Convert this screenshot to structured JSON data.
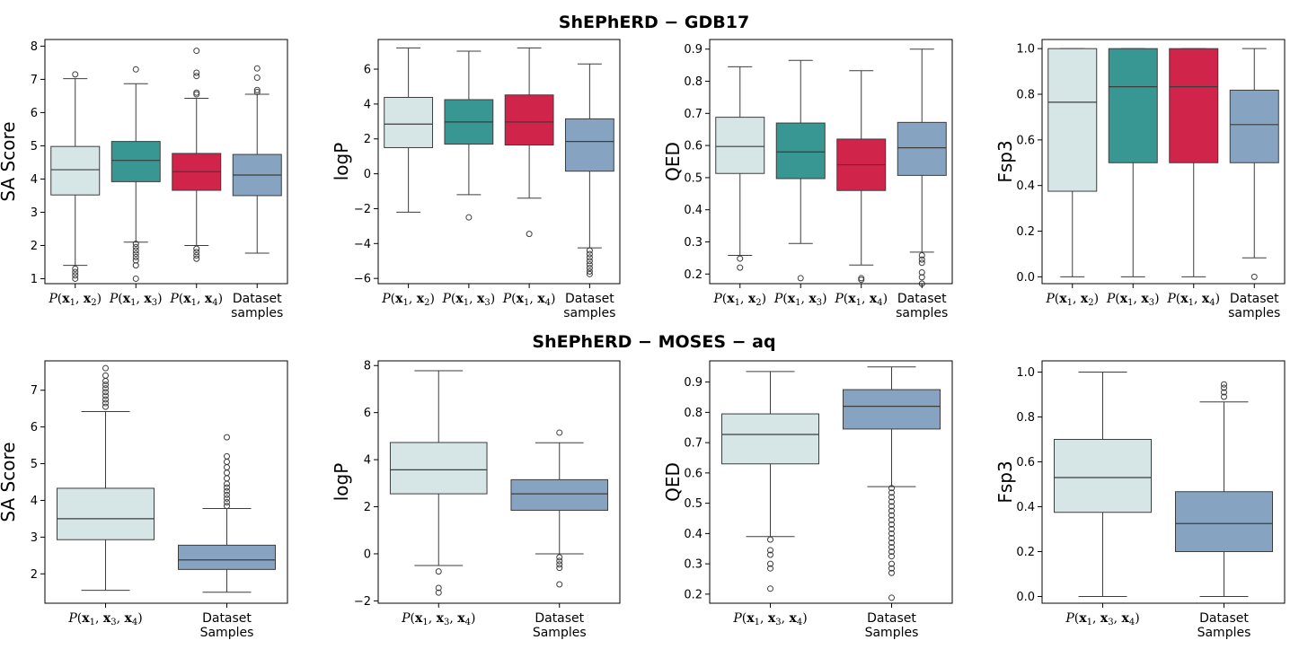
{
  "section_titles": [
    "ShEPhERD − GDB17",
    "ShEPhERD − MOSES − aq"
  ],
  "series_colors": {
    "P(x1,x2)": "#d6e6e6",
    "P(x1,x3)": "#389693",
    "P(x1,x4)": "#d1244a",
    "P(x1,x3,x4)": "#d6e6e6",
    "Dataset": "#86a4c2"
  },
  "chart_data": [
    {
      "type": "box",
      "ylabel": "SA Score",
      "ylim": [
        0.85,
        8.2
      ],
      "yticks": [
        1,
        2,
        3,
        4,
        5,
        6,
        7,
        8
      ],
      "ytick_labels": [
        "1",
        "2",
        "3",
        "4",
        "5",
        "6",
        "7",
        "8"
      ],
      "categories": [
        "P(x1,x2)",
        "P(x1,x3)",
        "P(x1,x4)",
        "Dataset samples"
      ],
      "boxes": [
        {
          "label": "P(x1,x2)",
          "color": "#d6e6e6",
          "whislo": 1.4,
          "q1": 3.52,
          "med": 4.28,
          "q3": 4.98,
          "whishi": 7.02,
          "fliers": [
            1.3,
            1.2,
            1.1,
            1.0,
            7.15
          ]
        },
        {
          "label": "P(x1,x3)",
          "color": "#389693",
          "whislo": 2.1,
          "q1": 3.92,
          "med": 4.56,
          "q3": 5.13,
          "whishi": 6.87,
          "fliers": [
            2.05,
            1.95,
            1.85,
            1.75,
            1.65,
            1.55,
            1.4,
            1.0,
            7.3
          ]
        },
        {
          "label": "P(x1,x4)",
          "color": "#d1244a",
          "whislo": 2.0,
          "q1": 3.66,
          "med": 4.22,
          "q3": 4.77,
          "whishi": 6.43,
          "fliers": [
            1.9,
            1.8,
            1.7,
            1.6,
            6.55,
            6.6,
            7.1,
            7.2,
            7.86
          ]
        },
        {
          "label": "Dataset samples",
          "color": "#86a4c2",
          "whislo": 1.77,
          "q1": 3.5,
          "med": 4.12,
          "q3": 4.74,
          "whishi": 6.55,
          "fliers": [
            6.62,
            6.68,
            7.05,
            7.33
          ]
        }
      ]
    },
    {
      "type": "box",
      "ylabel": "logP",
      "ylim": [
        -6.3,
        7.7
      ],
      "yticks": [
        -6,
        -4,
        -2,
        0,
        2,
        4,
        6
      ],
      "ytick_labels": [
        "−6",
        "−4",
        "−2",
        "0",
        "2",
        "4",
        "6"
      ],
      "categories": [
        "P(x1,x2)",
        "P(x1,x3)",
        "P(x1,x4)",
        "Dataset samples"
      ],
      "boxes": [
        {
          "label": "P(x1,x2)",
          "color": "#d6e6e6",
          "whislo": -2.2,
          "q1": 1.5,
          "med": 2.85,
          "q3": 4.38,
          "whishi": 7.22,
          "fliers": []
        },
        {
          "label": "P(x1,x3)",
          "color": "#389693",
          "whislo": -1.2,
          "q1": 1.7,
          "med": 2.97,
          "q3": 4.25,
          "whishi": 7.03,
          "fliers": [
            -2.5
          ]
        },
        {
          "label": "P(x1,x4)",
          "color": "#d1244a",
          "whislo": -1.4,
          "q1": 1.65,
          "med": 2.97,
          "q3": 4.52,
          "whishi": 7.22,
          "fliers": [
            -3.45
          ]
        },
        {
          "label": "Dataset samples",
          "color": "#86a4c2",
          "whislo": -4.25,
          "q1": 0.15,
          "med": 1.85,
          "q3": 3.15,
          "whishi": 6.3,
          "fliers": [
            -4.4,
            -4.6,
            -4.8,
            -5.0,
            -5.2,
            -5.4,
            -5.6,
            -5.75
          ]
        }
      ]
    },
    {
      "type": "box",
      "ylabel": "QED",
      "ylim": [
        0.17,
        0.93
      ],
      "yticks": [
        0.2,
        0.3,
        0.4,
        0.5,
        0.6,
        0.7,
        0.8,
        0.9
      ],
      "ytick_labels": [
        "0.2",
        "0.3",
        "0.4",
        "0.5",
        "0.6",
        "0.7",
        "0.8",
        "0.9"
      ],
      "categories": [
        "P(x1,x2)",
        "P(x1,x3)",
        "P(x1,x4)",
        "Dataset samples"
      ],
      "boxes": [
        {
          "label": "P(x1,x2)",
          "color": "#d6e6e6",
          "whislo": 0.258,
          "q1": 0.513,
          "med": 0.597,
          "q3": 0.688,
          "whishi": 0.845,
          "fliers": [
            0.248,
            0.22
          ]
        },
        {
          "label": "P(x1,x3)",
          "color": "#389693",
          "whislo": 0.295,
          "q1": 0.497,
          "med": 0.58,
          "q3": 0.67,
          "whishi": 0.865,
          "fliers": [
            0.187
          ]
        },
        {
          "label": "P(x1,x4)",
          "color": "#d1244a",
          "whislo": 0.228,
          "q1": 0.46,
          "med": 0.54,
          "q3": 0.62,
          "whishi": 0.833,
          "fliers": [
            0.187,
            0.182
          ]
        },
        {
          "label": "Dataset samples",
          "color": "#86a4c2",
          "whislo": 0.268,
          "q1": 0.507,
          "med": 0.593,
          "q3": 0.672,
          "whishi": 0.9,
          "fliers": [
            0.258,
            0.245,
            0.235,
            0.205,
            0.19,
            0.17
          ]
        }
      ]
    },
    {
      "type": "box",
      "ylabel": "Fsp3",
      "ylim": [
        -0.03,
        1.04
      ],
      "yticks": [
        0.0,
        0.2,
        0.4,
        0.6,
        0.8,
        1.0
      ],
      "ytick_labels": [
        "0.0",
        "0.2",
        "0.4",
        "0.6",
        "0.8",
        "1.0"
      ],
      "categories": [
        "P(x1,x2)",
        "P(x1,x3)",
        "P(x1,x4)",
        "Dataset samples"
      ],
      "boxes": [
        {
          "label": "P(x1,x2)",
          "color": "#d6e6e6",
          "whislo": 0.0,
          "q1": 0.375,
          "med": 0.765,
          "q3": 1.0,
          "whishi": 1.0,
          "fliers": []
        },
        {
          "label": "P(x1,x3)",
          "color": "#389693",
          "whislo": 0.0,
          "q1": 0.5,
          "med": 0.833,
          "q3": 1.0,
          "whishi": 1.0,
          "fliers": []
        },
        {
          "label": "P(x1,x4)",
          "color": "#d1244a",
          "whislo": 0.0,
          "q1": 0.5,
          "med": 0.833,
          "q3": 1.0,
          "whishi": 1.0,
          "fliers": []
        },
        {
          "label": "Dataset samples",
          "color": "#86a4c2",
          "whislo": 0.083,
          "q1": 0.5,
          "med": 0.667,
          "q3": 0.818,
          "whishi": 1.0,
          "fliers": [
            0.0
          ]
        }
      ]
    },
    {
      "type": "box",
      "ylabel": "SA Score",
      "ylim": [
        1.2,
        7.8
      ],
      "yticks": [
        2,
        3,
        4,
        5,
        6,
        7
      ],
      "ytick_labels": [
        "2",
        "3",
        "4",
        "5",
        "6",
        "7"
      ],
      "categories": [
        "P(x1,x3,x4)",
        "Dataset Samples"
      ],
      "boxes": [
        {
          "label": "P(x1,x3,x4)",
          "color": "#d6e6e6",
          "whislo": 1.55,
          "q1": 2.93,
          "med": 3.5,
          "q3": 4.33,
          "whishi": 6.42,
          "fliers": [
            6.55,
            6.65,
            6.75,
            6.85,
            6.95,
            7.05,
            7.15,
            7.25,
            7.4,
            7.6
          ]
        },
        {
          "label": "Dataset Samples",
          "color": "#86a4c2",
          "whislo": 1.5,
          "q1": 2.12,
          "med": 2.38,
          "q3": 2.78,
          "whishi": 3.78,
          "fliers": [
            3.85,
            3.95,
            4.05,
            4.15,
            4.25,
            4.35,
            4.45,
            4.6,
            4.75,
            4.9,
            5.05,
            5.2,
            5.72
          ]
        }
      ]
    },
    {
      "type": "box",
      "ylabel": "logP",
      "ylim": [
        -2.1,
        8.2
      ],
      "yticks": [
        -2,
        0,
        2,
        4,
        6,
        8
      ],
      "ytick_labels": [
        "−2",
        "0",
        "2",
        "4",
        "6",
        "8"
      ],
      "categories": [
        "P(x1,x3,x4)",
        "Dataset Samples"
      ],
      "boxes": [
        {
          "label": "P(x1,x3,x4)",
          "color": "#d6e6e6",
          "whislo": -0.5,
          "q1": 2.55,
          "med": 3.57,
          "q3": 4.73,
          "whishi": 7.78,
          "fliers": [
            -0.75,
            -1.45,
            -1.65
          ]
        },
        {
          "label": "Dataset Samples",
          "color": "#86a4c2",
          "whislo": 0.0,
          "q1": 1.85,
          "med": 2.55,
          "q3": 3.15,
          "whishi": 4.72,
          "fliers": [
            -0.15,
            -0.3,
            -0.45,
            -0.6,
            -1.3,
            5.15
          ]
        }
      ]
    },
    {
      "type": "box",
      "ylabel": "QED",
      "ylim": [
        0.17,
        0.97
      ],
      "yticks": [
        0.2,
        0.3,
        0.4,
        0.5,
        0.6,
        0.7,
        0.8,
        0.9
      ],
      "ytick_labels": [
        "0.2",
        "0.3",
        "0.4",
        "0.5",
        "0.6",
        "0.7",
        "0.8",
        "0.9"
      ],
      "categories": [
        "P(x1,x3,x4)",
        "Dataset Samples"
      ],
      "boxes": [
        {
          "label": "P(x1,x3,x4)",
          "color": "#d6e6e6",
          "whislo": 0.39,
          "q1": 0.63,
          "med": 0.727,
          "q3": 0.795,
          "whishi": 0.935,
          "fliers": [
            0.38,
            0.345,
            0.33,
            0.3,
            0.285,
            0.218
          ]
        },
        {
          "label": "Dataset Samples",
          "color": "#86a4c2",
          "whislo": 0.555,
          "q1": 0.745,
          "med": 0.82,
          "q3": 0.875,
          "whishi": 0.95,
          "fliers": [
            0.55,
            0.535,
            0.52,
            0.505,
            0.49,
            0.475,
            0.46,
            0.445,
            0.43,
            0.415,
            0.4,
            0.385,
            0.37,
            0.355,
            0.34,
            0.325,
            0.3,
            0.285,
            0.27,
            0.188
          ]
        }
      ]
    },
    {
      "type": "box",
      "ylabel": "Fsp3",
      "ylim": [
        -0.03,
        1.05
      ],
      "yticks": [
        0.0,
        0.2,
        0.4,
        0.6,
        0.8,
        1.0
      ],
      "ytick_labels": [
        "0.0",
        "0.2",
        "0.4",
        "0.6",
        "0.8",
        "1.0"
      ],
      "categories": [
        "P(x1,x3,x4)",
        "Dataset Samples"
      ],
      "boxes": [
        {
          "label": "P(x1,x3,x4)",
          "color": "#d6e6e6",
          "whislo": 0.0,
          "q1": 0.375,
          "med": 0.53,
          "q3": 0.7,
          "whishi": 1.0,
          "fliers": []
        },
        {
          "label": "Dataset Samples",
          "color": "#86a4c2",
          "whislo": 0.0,
          "q1": 0.2,
          "med": 0.325,
          "q3": 0.467,
          "whishi": 0.867,
          "fliers": [
            0.89,
            0.91,
            0.93,
            0.945
          ]
        }
      ]
    }
  ]
}
